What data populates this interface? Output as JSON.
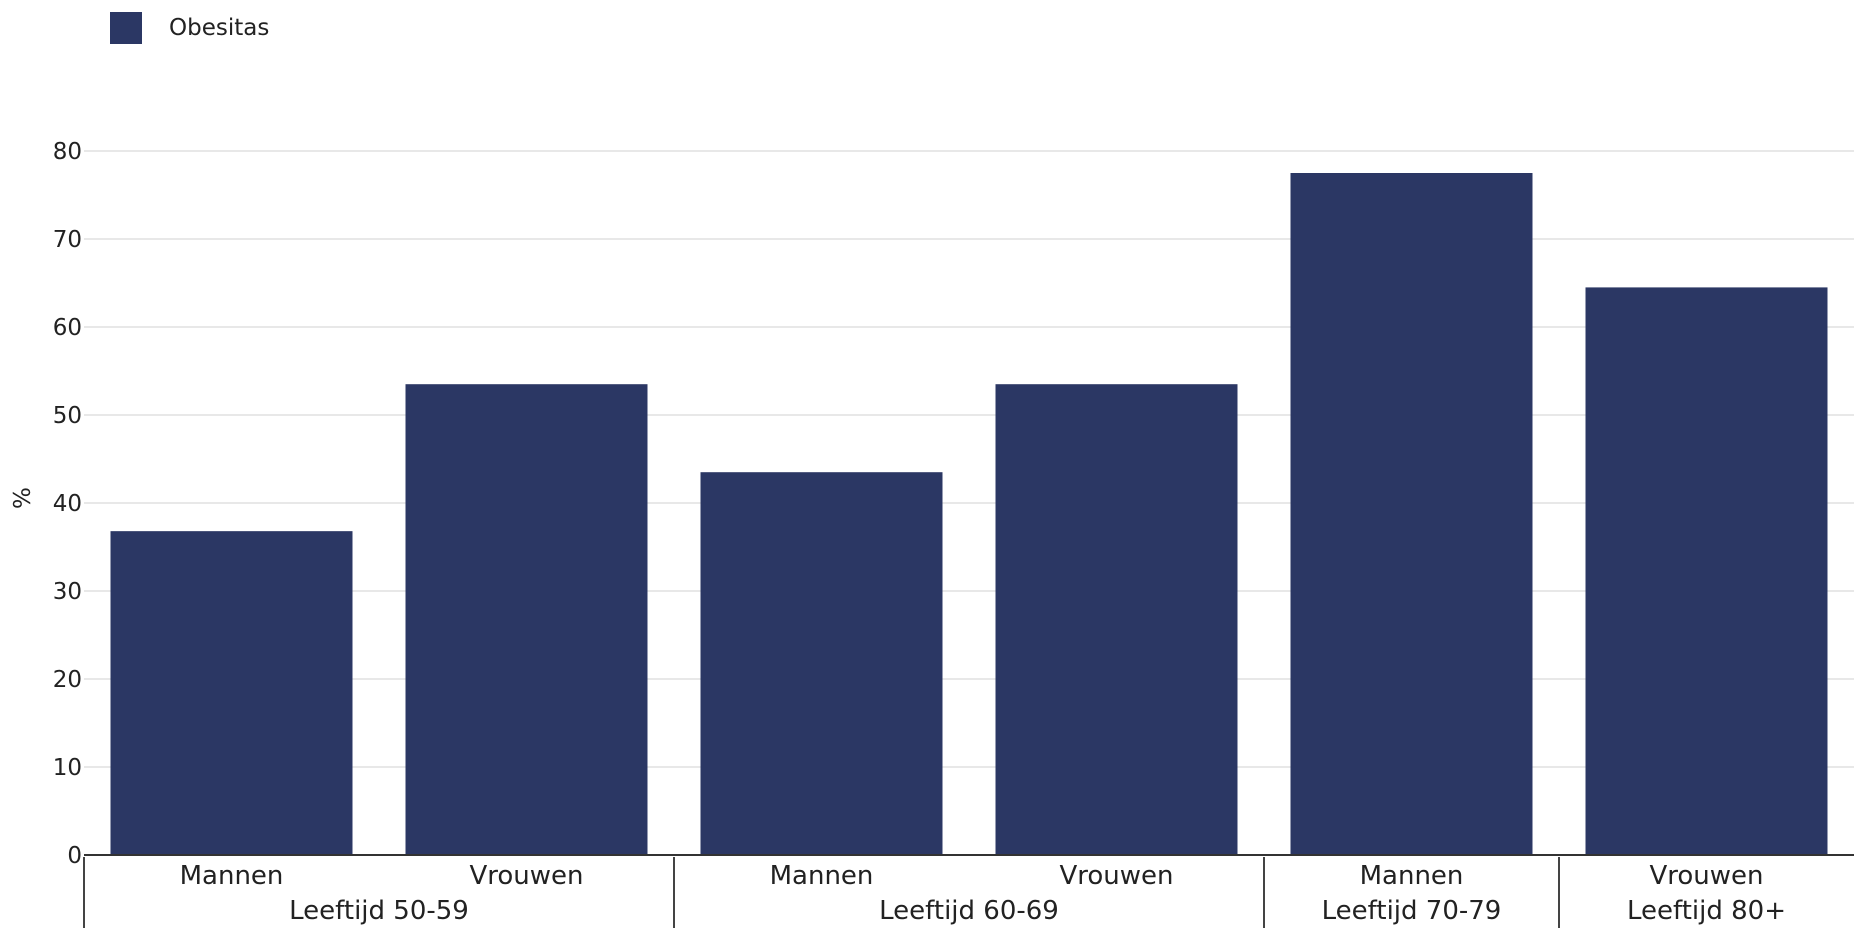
{
  "chart_data": {
    "type": "bar",
    "ylabel": "%",
    "ylim": [
      0,
      80
    ],
    "yticks": [
      0,
      10,
      20,
      30,
      40,
      50,
      60,
      70,
      80
    ],
    "grid": true,
    "legend_position": "top-left",
    "series": [
      {
        "name": "Obesitas",
        "color": "#2b3764",
        "values": [
          36.8,
          53.5,
          43.5,
          53.5,
          77.5,
          64.5
        ]
      }
    ],
    "categories": [
      "Mannen",
      "Vrouwen",
      "Mannen",
      "Vrouwen",
      "Mannen",
      "Vrouwen"
    ],
    "groups": [
      {
        "label": "Leeftijd 50-59",
        "span": [
          0,
          1
        ]
      },
      {
        "label": "Leeftijd 60-69",
        "span": [
          2,
          3
        ]
      },
      {
        "label": "Leeftijd 70-79",
        "span": [
          4,
          4
        ]
      },
      {
        "label": "Leeftijd 80+",
        "span": [
          5,
          5
        ]
      }
    ]
  }
}
